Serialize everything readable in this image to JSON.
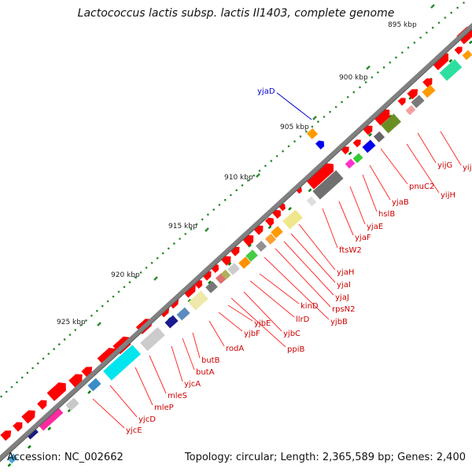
{
  "title": "Lactococcus lactis subsp. lactis Il1403, complete genome",
  "accession": "Accession: NC_002662",
  "summary": "Topology: circular; Length: 2,365,589 bp; Genes: 2,400",
  "ruler": [
    {
      "label": "895 kbp"
    },
    {
      "label": "900 kbp"
    },
    {
      "label": "905 kbp"
    },
    {
      "label": "910 kbp"
    },
    {
      "label": "915 kbp"
    },
    {
      "label": "920 kbp"
    },
    {
      "label": "925 kbp"
    }
  ],
  "outer_gene": "yjaD",
  "gene_labels": [
    "yijF",
    "yijG",
    "yijH",
    "pnuC2",
    "yjaB",
    "hslB",
    "yjaE",
    "yjaF",
    "ftsW2",
    "yjaH",
    "yjaI",
    "yjaJ",
    "rpsN2",
    "yjbB",
    "kinD",
    "llrD",
    "yjbC",
    "ppiB",
    "yjbE",
    "yjbF",
    "rodA",
    "butB",
    "butA",
    "yjcA",
    "mleS",
    "mleP",
    "yjcD",
    "yjcE"
  ],
  "colors": {
    "backbone": "#808080",
    "gene_red": "#ff0000",
    "label_red": "#cc0000",
    "label_blue": "#0000cc",
    "tick_green": "#008000",
    "ruler_green": "#2e8b2e"
  }
}
